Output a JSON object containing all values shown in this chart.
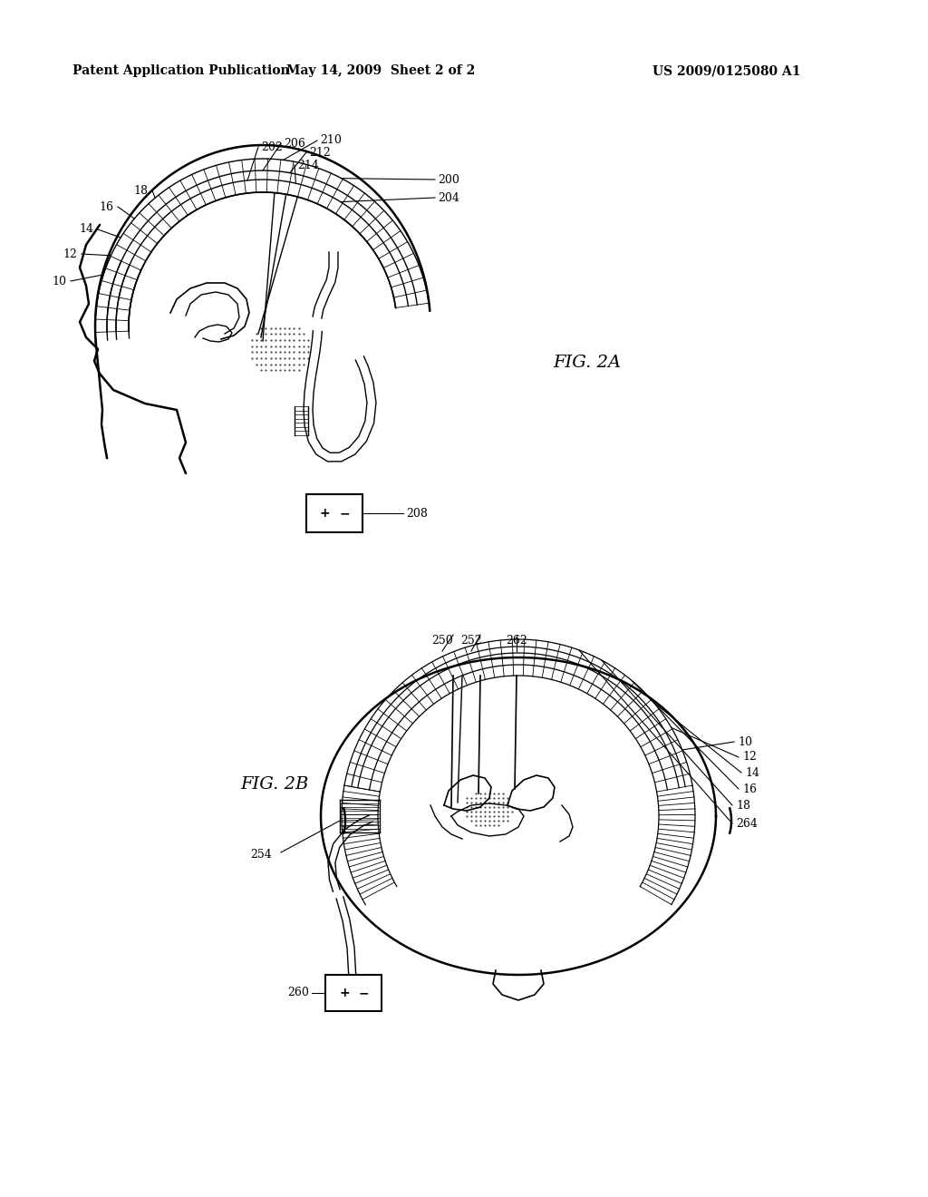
{
  "bg_color": "#ffffff",
  "line_color": "#000000",
  "header_left": "Patent Application Publication",
  "header_mid": "May 14, 2009  Sheet 2 of 2",
  "header_right": "US 2009/0125080 A1",
  "fig2a_label": "FIG. 2A",
  "fig2b_label": "FIG. 2B"
}
